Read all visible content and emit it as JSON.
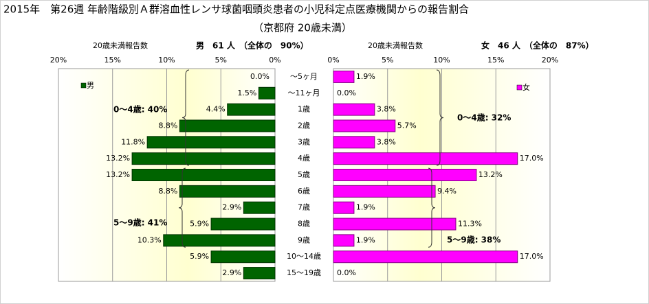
{
  "chart_data": {
    "type": "pyramid",
    "title": "2015年　第26週 年齢階級別Ａ群溶血性レンサ球菌咽頭炎患者の小児科定点医療機関からの報告割合",
    "subtitle": "（京都府 20歳未満）",
    "categories": [
      "～5ヶ月",
      "～11ヶ月",
      "1歳",
      "2歳",
      "3歳",
      "4歳",
      "5歳",
      "6歳",
      "7歳",
      "8歳",
      "9歳",
      "10～14歳",
      "15～19歳"
    ],
    "xlim": [
      0,
      20
    ],
    "xticks": [
      {
        "value": 0,
        "label": "0%"
      },
      {
        "value": 5,
        "label": "5%"
      },
      {
        "value": 10,
        "label": "10%"
      },
      {
        "value": 15,
        "label": "15%"
      },
      {
        "value": 20,
        "label": "20%"
      }
    ],
    "grid": true,
    "series": [
      {
        "name": "男",
        "color": "#006400",
        "count_label": "20歳未満報告数",
        "summary": "男　61 人　（全体の　90%）",
        "values": [
          0.0,
          1.5,
          4.4,
          8.8,
          11.8,
          13.2,
          13.2,
          8.8,
          2.9,
          5.9,
          10.3,
          5.9,
          2.9
        ],
        "value_labels": [
          "0.0%",
          "1.5%",
          "4.4%",
          "8.8%",
          "11.8%",
          "13.2%",
          "13.2%",
          "8.8%",
          "2.9%",
          "5.9%",
          "10.3%",
          "5.9%",
          "2.9%"
        ],
        "annotations": [
          "0～4歳: 40%",
          "5～9歳: 41%"
        ]
      },
      {
        "name": "女",
        "color": "#ff00ff",
        "count_label": "20歳未満報告数",
        "summary": "女　46 人　（全体の　87%）",
        "values": [
          1.9,
          0.0,
          3.8,
          5.7,
          3.8,
          17.0,
          13.2,
          9.4,
          1.9,
          11.3,
          1.9,
          17.0,
          0.0
        ],
        "value_labels": [
          "1.9%",
          "0.0%",
          "3.8%",
          "5.7%",
          "3.8%",
          "17.0%",
          "13.2%",
          "9.4%",
          "1.9%",
          "11.3%",
          "1.9%",
          "17.0%",
          "0.0%"
        ],
        "annotations": [
          "0～4歳: 32%",
          "5～9歳: 38%"
        ]
      }
    ]
  }
}
